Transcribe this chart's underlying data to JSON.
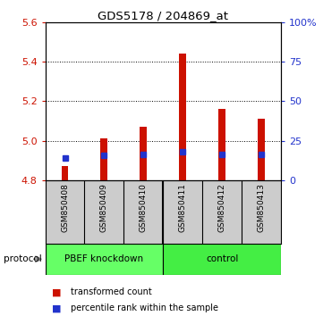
{
  "title": "GDS5178 / 204869_at",
  "samples": [
    "GSM850408",
    "GSM850409",
    "GSM850410",
    "GSM850411",
    "GSM850412",
    "GSM850413"
  ],
  "transformed_counts": [
    4.87,
    5.01,
    5.07,
    5.44,
    5.16,
    5.11
  ],
  "percentile_ranks": [
    4.91,
    4.925,
    4.93,
    4.945,
    4.93,
    4.93
  ],
  "baseline": 4.8,
  "ylim": [
    4.8,
    5.6
  ],
  "yticks": [
    4.8,
    5.0,
    5.2,
    5.4,
    5.6
  ],
  "right_yticks": [
    0,
    25,
    50,
    75,
    100
  ],
  "groups": [
    {
      "label": "PBEF knockdown",
      "color": "#66ff66"
    },
    {
      "label": "control",
      "color": "#44ee44"
    }
  ],
  "bar_color": "#cc1100",
  "percentile_color": "#2233cc",
  "bar_width": 0.18,
  "background_color": "#ffffff",
  "tick_label_color_left": "#cc1100",
  "tick_label_color_right": "#2233cc",
  "protocol_label": "protocol",
  "legend_red": "transformed count",
  "legend_blue": "percentile rank within the sample",
  "sample_bg": "#cccccc",
  "group1_color": "#66ff66",
  "group2_color": "#44ee44"
}
